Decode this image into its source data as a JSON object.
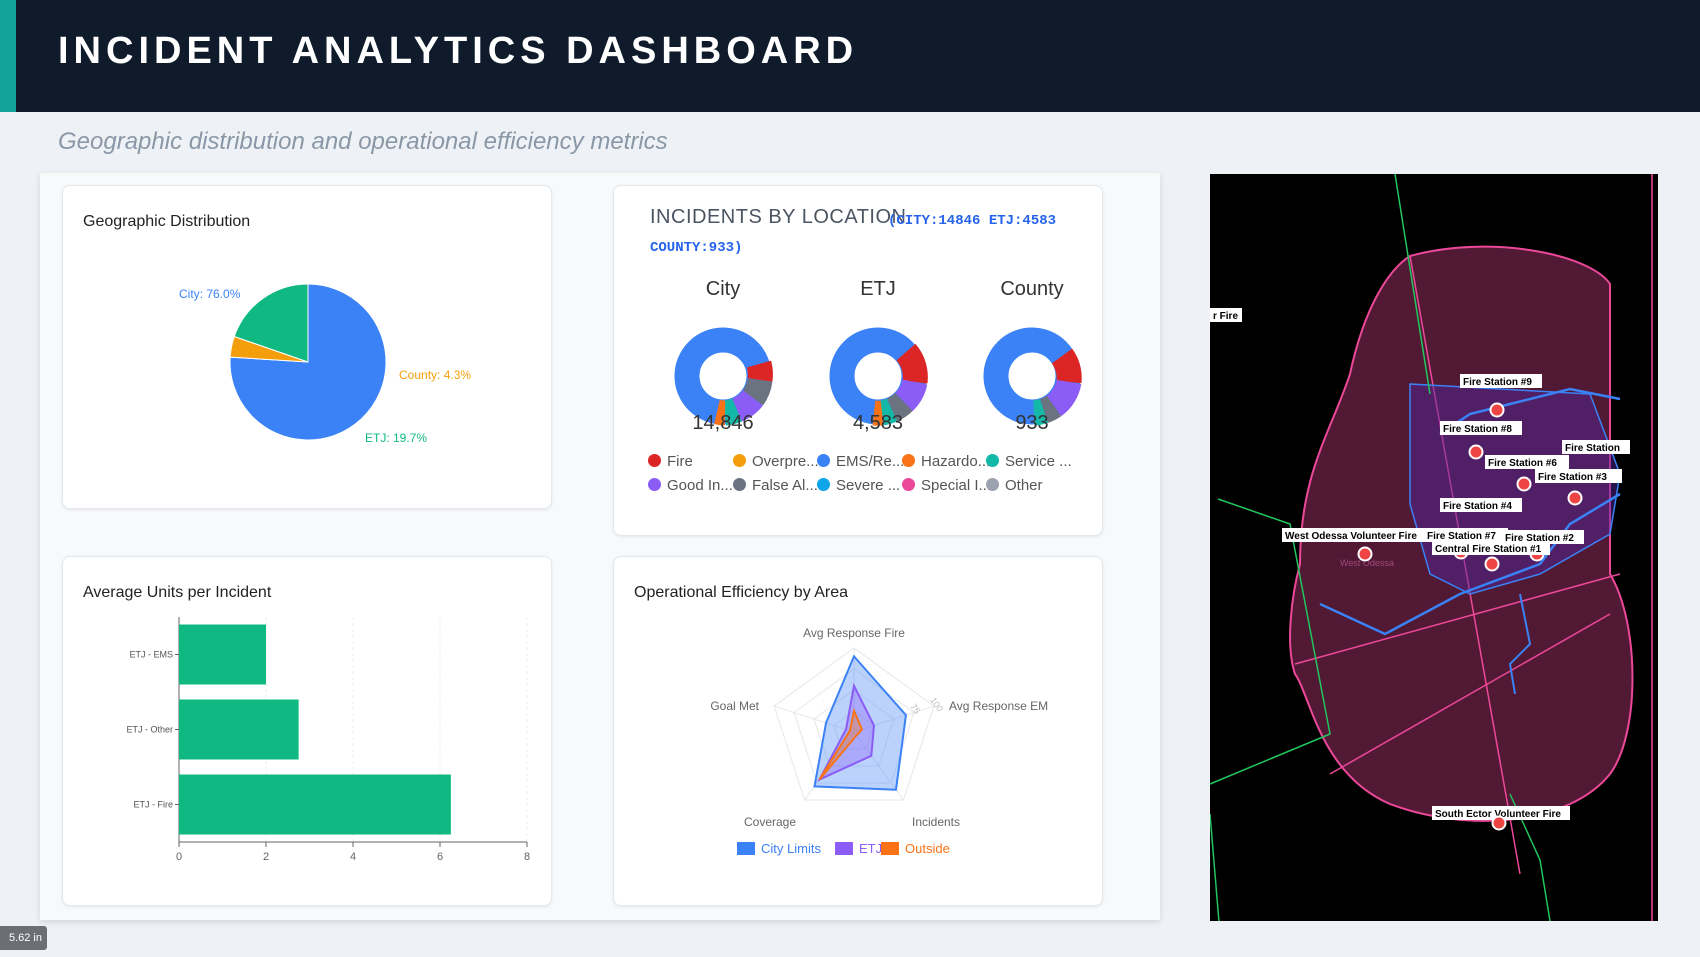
{
  "header": {
    "title": "INCIDENT ANALYTICS DASHBOARD"
  },
  "subtitle": "Geographic distribution and operational efficiency metrics",
  "zoom_badge": "5.62 in",
  "geo_card": {
    "title": "Geographic Distribution",
    "chart_data": {
      "type": "pie",
      "title": "Geographic Distribution",
      "slices": [
        {
          "label": "City",
          "value": 76.0,
          "text": "City: 76.0%",
          "color": "#3b82f6"
        },
        {
          "label": "County",
          "value": 4.3,
          "text": "County: 4.3%",
          "color": "#f59e0b"
        },
        {
          "label": "ETJ",
          "value": 19.7,
          "text": "ETJ: 19.7%",
          "color": "#10b981"
        }
      ]
    }
  },
  "location_card": {
    "title": "INCIDENTS BY LOCATION",
    "counts_line1": "(CITY:14846 ETJ:4583",
    "counts_line2": "COUNTY:933)",
    "donuts": [
      {
        "name": "City",
        "value": "14,846"
      },
      {
        "name": "ETJ",
        "value": "4,583"
      },
      {
        "name": "County",
        "value": "933"
      }
    ],
    "legend": [
      {
        "label": "Fire",
        "color": "#dc2626"
      },
      {
        "label": "Overpre...",
        "color": "#f59e0b"
      },
      {
        "label": "EMS/Re...",
        "color": "#3b82f6"
      },
      {
        "label": "Hazardo...",
        "color": "#f97316"
      },
      {
        "label": "Service ...",
        "color": "#14b8a6"
      },
      {
        "label": "Good In...",
        "color": "#8b5cf6"
      },
      {
        "label": "False Al...",
        "color": "#6b7280"
      },
      {
        "label": "Severe ...",
        "color": "#0ea5e9"
      },
      {
        "label": "Special I...",
        "color": "#ec4899"
      },
      {
        "label": "Other",
        "color": "#9ca3af"
      }
    ]
  },
  "units_card": {
    "title": "Average Units per Incident",
    "chart_data": {
      "type": "bar",
      "orientation": "horizontal",
      "categories": [
        "ETJ - EMS",
        "ETJ - Other",
        "ETJ - Fire"
      ],
      "values": [
        2.0,
        2.75,
        6.25
      ],
      "xlim": [
        0,
        8
      ],
      "xticks": [
        "0",
        "2",
        "4",
        "6",
        "8"
      ],
      "color": "#10b981"
    }
  },
  "efficiency_card": {
    "title": "Operational Efficiency by Area",
    "chart_data": {
      "type": "radar",
      "axes": [
        "Avg Response Fire",
        "Avg Response EM",
        "Incidents",
        "Coverage",
        "Goal Met"
      ],
      "scale_labels": [
        "75",
        "100"
      ],
      "max": 100,
      "series": [
        {
          "name": "City Limits",
          "values": [
            90,
            65,
            85,
            80,
            35
          ],
          "color": "#3b82f6"
        },
        {
          "name": "ETJ",
          "values": [
            55,
            25,
            35,
            70,
            10
          ],
          "color": "#8b5cf6"
        },
        {
          "name": "Outside",
          "values": [
            25,
            10,
            5,
            70,
            5
          ],
          "color": "#f97316"
        }
      ]
    }
  },
  "map": {
    "labels": [
      "r Fire",
      "Fire Station #9",
      "Fire Station #8",
      "Fire Station",
      "Fire Station #6",
      "Fire Station #3",
      "Fire Station #4",
      "West Odessa Volunteer Fire",
      "Fire Station #7",
      "Fire Station #2",
      "Central Fire Station #1",
      "South Ector Volunteer Fire"
    ],
    "faint_label": "West Odessa"
  }
}
